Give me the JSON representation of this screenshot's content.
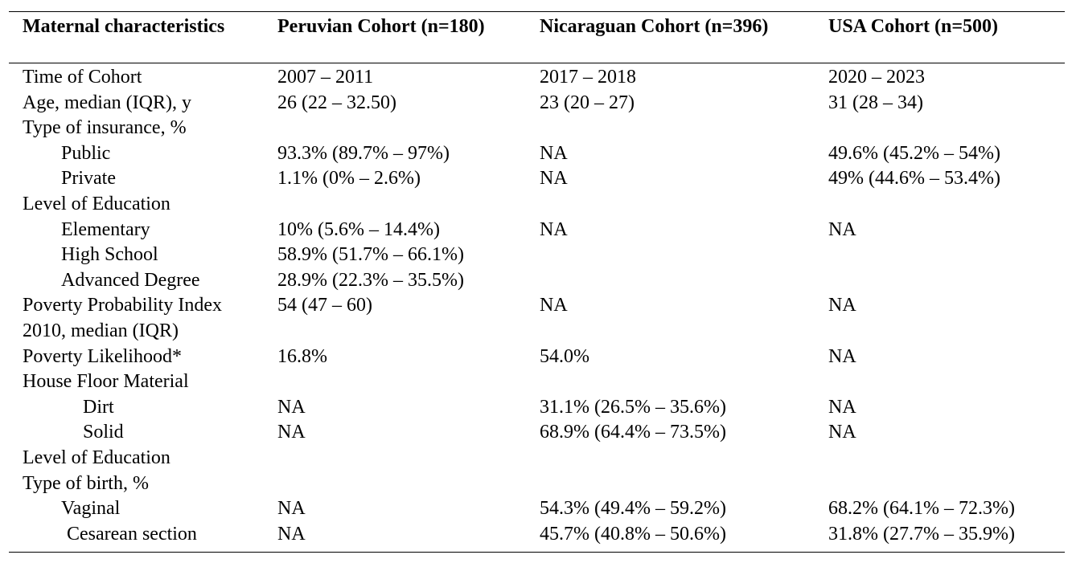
{
  "header": {
    "col0": "Maternal characteristics",
    "col1": "Peruvian Cohort (n=180)",
    "col2": "Nicaraguan Cohort (n=396)",
    "col3": "USA Cohort (n=500)"
  },
  "rows": [
    {
      "label": "Time of Cohort",
      "peru": "2007 – 2011",
      "nica": "2017 – 2018",
      "usa": "2020 – 2023"
    },
    {
      "label": "Age, median (IQR), y",
      "peru": "26 (22 – 32.50)",
      "nica": "23 (20 – 27)",
      "usa": "31 (28 – 34)"
    },
    {
      "label": "Type of insurance, %",
      "peru": "",
      "nica": "",
      "usa": ""
    },
    {
      "label": "Public",
      "peru": "93.3% (89.7% – 97%)",
      "nica": "NA",
      "usa": "49.6% (45.2% – 54%)"
    },
    {
      "label": "Private",
      "peru": "1.1% (0% – 2.6%)",
      "nica": "NA",
      "usa": "49% (44.6% – 53.4%)"
    },
    {
      "label": "Level of Education",
      "peru": "",
      "nica": "",
      "usa": ""
    },
    {
      "label": "Elementary",
      "peru": "10% (5.6% – 14.4%)",
      "nica": "NA",
      "usa": "NA"
    },
    {
      "label": "High School",
      "peru": "58.9% (51.7% – 66.1%)",
      "nica": "",
      "usa": ""
    },
    {
      "label": "Advanced Degree",
      "peru": "28.9% (22.3% – 35.5%)",
      "nica": "",
      "usa": ""
    },
    {
      "label": "Poverty Probability Index",
      "peru": "54 (47 – 60)",
      "nica": "NA",
      "usa": "NA"
    },
    {
      "label": "2010, median (IQR)",
      "peru": "",
      "nica": "",
      "usa": ""
    },
    {
      "label": "Poverty Likelihood*",
      "peru": "16.8%",
      "nica": "54.0%",
      "usa": "NA"
    },
    {
      "label": "House Floor Material",
      "peru": "",
      "nica": "",
      "usa": ""
    },
    {
      "label": "Dirt",
      "peru": "NA",
      "nica": "31.1% (26.5% – 35.6%)",
      "usa": "NA"
    },
    {
      "label": "Solid",
      "peru": "NA",
      "nica": "68.9% (64.4% – 73.5%)",
      "usa": "NA"
    },
    {
      "label": "Level of Education",
      "peru": "",
      "nica": "",
      "usa": ""
    },
    {
      "label": "Type of birth, %",
      "peru": "",
      "nica": "",
      "usa": ""
    },
    {
      "label": "Vaginal",
      "peru": "NA",
      "nica": "54.3% (49.4% – 59.2%)",
      "usa": "68.2% (64.1% – 72.3%)"
    },
    {
      "label": "Cesarean section",
      "peru": "NA",
      "nica": "45.7% (40.8% – 50.6%)",
      "usa": "31.8% (27.7% – 35.9%)"
    }
  ]
}
